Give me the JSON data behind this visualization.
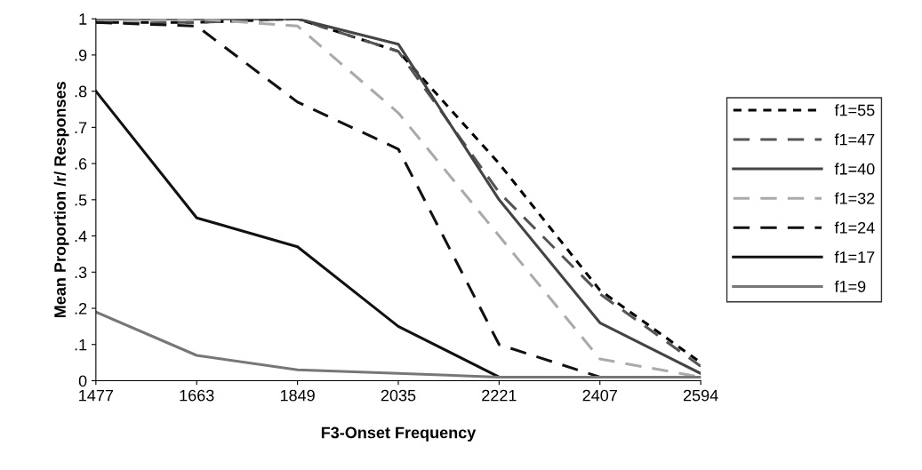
{
  "chart_data": {
    "type": "line",
    "xlabel": "F3-Onset Frequency",
    "ylabel": "Mean Proportion /r/ Responses",
    "categories": [
      "1477",
      "1663",
      "1849",
      "2035",
      "2221",
      "2407",
      "2594"
    ],
    "ylim": [
      0,
      1
    ],
    "yticks": [
      0,
      {
        "value": 0.1,
        "label": ".1"
      },
      {
        "value": 0.2,
        "label": ".2"
      },
      {
        "value": 0.3,
        "label": ".3"
      },
      {
        "value": 0.4,
        "label": ".4"
      },
      {
        "value": 0.5,
        "label": ".5"
      },
      {
        "value": 0.6,
        "label": ".6"
      },
      {
        "value": 0.7,
        "label": ".7"
      },
      {
        "value": 0.8,
        "label": ".8"
      },
      {
        "value": 0.9,
        "label": ".9"
      },
      1
    ],
    "grid": false,
    "legend": "right",
    "marker": "none",
    "series": [
      {
        "name": "f1=55",
        "color": "#000000",
        "line_style": "dotted",
        "values": [
          0.99,
          0.99,
          1.0,
          0.91,
          0.6,
          0.25,
          0.05
        ]
      },
      {
        "name": "f1=47",
        "color": "#555555",
        "line_style": "dashed",
        "values": [
          0.99,
          0.99,
          1.0,
          0.91,
          0.52,
          0.24,
          0.04
        ]
      },
      {
        "name": "f1=40",
        "color": "#444444",
        "line_style": "solid",
        "values": [
          1.0,
          1.0,
          1.0,
          0.93,
          0.5,
          0.16,
          0.02
        ]
      },
      {
        "name": "f1=32",
        "color": "#aaaaaa",
        "line_style": "dashed",
        "values": [
          0.99,
          1.0,
          0.98,
          0.74,
          0.4,
          0.06,
          0.01
        ]
      },
      {
        "name": "f1=24",
        "color": "#111111",
        "line_style": "dashed",
        "values": [
          0.99,
          0.98,
          0.77,
          0.64,
          0.1,
          0.01,
          0.01
        ]
      },
      {
        "name": "f1=17",
        "color": "#111111",
        "line_style": "solid",
        "values": [
          0.8,
          0.45,
          0.37,
          0.15,
          0.01,
          0.01,
          0.01
        ]
      },
      {
        "name": "f1=9",
        "color": "#777777",
        "line_style": "solid",
        "values": [
          0.19,
          0.07,
          0.03,
          0.02,
          0.01,
          0.01,
          0.01
        ]
      }
    ]
  }
}
